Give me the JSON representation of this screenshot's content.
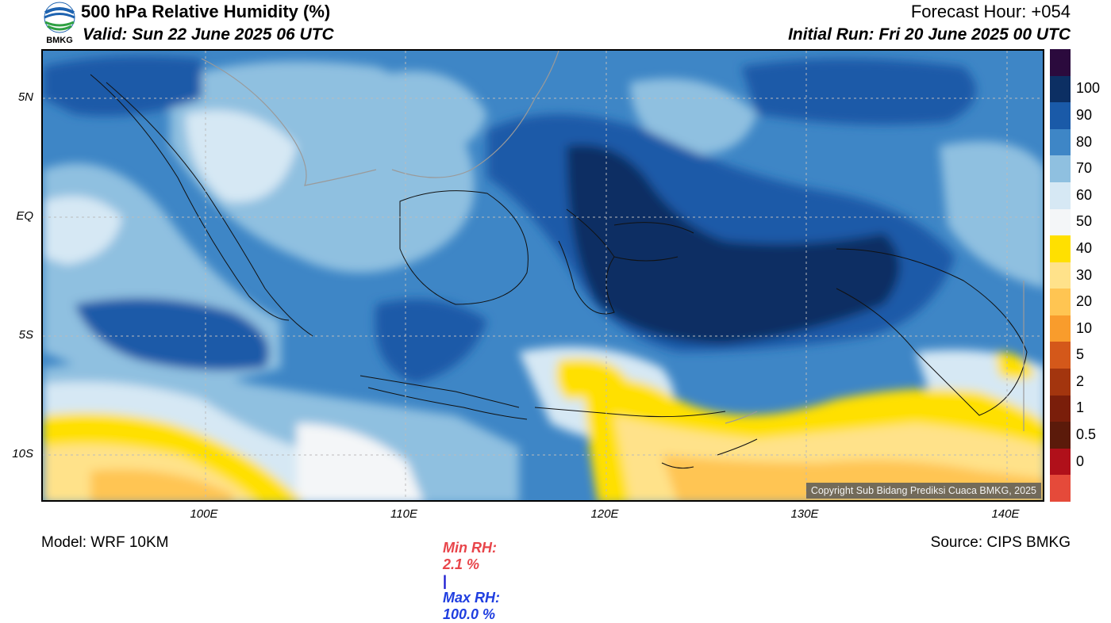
{
  "header": {
    "title": "500 hPa Relative Humidity (%)",
    "valid": "Valid: Sun 22 June 2025 06 UTC",
    "forecast_hour": "Forecast Hour: +054",
    "initial_run": "Initial Run: Fri 20 June 2025 00 UTC",
    "logo_text": "BMKG"
  },
  "axes": {
    "lat_labels": [
      "5N",
      "EQ",
      "5S",
      "10S"
    ],
    "lon_labels": [
      "100E",
      "110E",
      "120E",
      "130E",
      "140E"
    ]
  },
  "colorbar": {
    "labels": [
      "100",
      "90",
      "80",
      "70",
      "60",
      "50",
      "40",
      "30",
      "20",
      "10",
      "5",
      "2",
      "1",
      "0.5",
      "0"
    ],
    "colors": [
      "#2b0a3d",
      "#0c2f63",
      "#1a5aa8",
      "#3e86c6",
      "#8fc0e0",
      "#d6e8f4",
      "#f4f6f8",
      "#ffe000",
      "#ffe28a",
      "#ffc552",
      "#f99c2c",
      "#d4581a",
      "#a3350e",
      "#7a1e0a",
      "#5b1a0a",
      "#b0101a",
      "#e54a3a"
    ]
  },
  "stats": {
    "min_label": "Min RH:",
    "min_value": "2.1 %",
    "separator": "|",
    "max_label": "Max RH:",
    "max_value": "100.0 %"
  },
  "footer": {
    "model": "Model: WRF 10KM",
    "source": "Source: CIPS BMKG",
    "copyright": "Copyright Sub Bidang Prediksi Cuaca BMKG, 2025"
  }
}
